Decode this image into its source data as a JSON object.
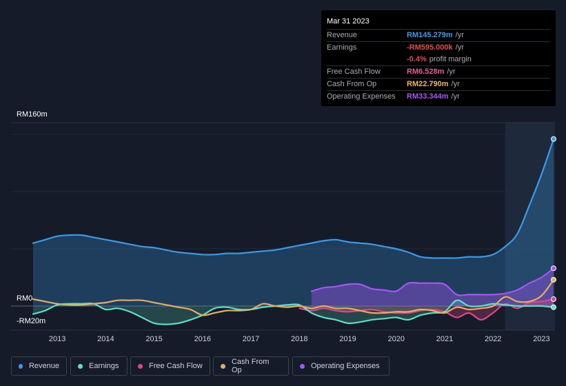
{
  "tooltip": {
    "date": "Mar 31 2023",
    "rows": [
      {
        "label": "Revenue",
        "value": "RM145.279m",
        "unit": "/yr",
        "color": "#3b9be8"
      },
      {
        "label": "Earnings",
        "value": "-RM595.000k",
        "unit": "/yr",
        "color": "#e5484d"
      },
      {
        "margin_value": "-0.4%",
        "margin_text": "profit margin",
        "color": "#e5484d"
      },
      {
        "label": "Free Cash Flow",
        "value": "RM6.528m",
        "unit": "/yr",
        "color": "#e45a9a"
      },
      {
        "label": "Cash From Op",
        "value": "RM22.790m",
        "unit": "/yr",
        "color": "#f0b46a"
      },
      {
        "label": "Operating Expenses",
        "value": "RM33.344m",
        "unit": "/yr",
        "color": "#a855f7"
      }
    ]
  },
  "legend": [
    {
      "label": "Revenue",
      "color": "#3b9be8"
    },
    {
      "label": "Earnings",
      "color": "#5ee0c5"
    },
    {
      "label": "Free Cash Flow",
      "color": "#d94a87"
    },
    {
      "label": "Cash From Op",
      "color": "#e8ad62"
    },
    {
      "label": "Operating Expenses",
      "color": "#a855f7"
    }
  ],
  "chart_data": {
    "type": "line",
    "title": "",
    "xlabel": "",
    "ylabel": "",
    "ylim": [
      -20,
      160
    ],
    "y_tick_labels": [
      "RM160m",
      "RM0",
      "-RM20m"
    ],
    "x_tick_labels": [
      "2013",
      "2014",
      "2015",
      "2016",
      "2017",
      "2018",
      "2019",
      "2020",
      "2021",
      "2022",
      "2023"
    ],
    "xlim": [
      2012.5,
      2023.25
    ],
    "highlight_start": 2022.25,
    "series": [
      {
        "name": "Revenue",
        "color": "#3b9be8",
        "fill": true,
        "x": [
          2012.5,
          2012.75,
          2013.0,
          2013.25,
          2013.5,
          2013.75,
          2014.0,
          2014.25,
          2014.5,
          2014.75,
          2015.0,
          2015.25,
          2015.5,
          2015.75,
          2016.0,
          2016.25,
          2016.5,
          2016.75,
          2017.0,
          2017.25,
          2017.5,
          2017.75,
          2018.0,
          2018.25,
          2018.5,
          2018.75,
          2019.0,
          2019.25,
          2019.5,
          2019.75,
          2020.0,
          2020.25,
          2020.5,
          2020.75,
          2021.0,
          2021.25,
          2021.5,
          2021.75,
          2022.0,
          2022.25,
          2022.5,
          2022.75,
          2023.0,
          2023.25
        ],
        "values": [
          55,
          58,
          61,
          62,
          62,
          60,
          58,
          56,
          54,
          52,
          51,
          49,
          47,
          46,
          45,
          45,
          46,
          46,
          47,
          48,
          49,
          51,
          53,
          55,
          57,
          58,
          56,
          55,
          54,
          52,
          50,
          47,
          43,
          42,
          42,
          42,
          43,
          43,
          45,
          52,
          63,
          88,
          115,
          146
        ]
      },
      {
        "name": "Earnings",
        "color": "#5ee0c5",
        "fill": true,
        "x": [
          2012.5,
          2012.75,
          2013.0,
          2013.25,
          2013.5,
          2013.75,
          2014.0,
          2014.25,
          2014.5,
          2014.75,
          2015.0,
          2015.25,
          2015.5,
          2015.75,
          2016.0,
          2016.25,
          2016.5,
          2016.75,
          2017.0,
          2017.25,
          2017.5,
          2017.75,
          2018.0,
          2018.25,
          2018.5,
          2018.75,
          2019.0,
          2019.25,
          2019.5,
          2019.75,
          2020.0,
          2020.25,
          2020.5,
          2020.75,
          2021.0,
          2021.25,
          2021.5,
          2021.75,
          2022.0,
          2022.25,
          2022.5,
          2022.75,
          2023.0,
          2023.25
        ],
        "values": [
          -7,
          -4,
          1,
          2,
          2,
          2,
          -3,
          -2,
          -5,
          -10,
          -15,
          -16,
          -15,
          -12,
          -8,
          -2,
          -1,
          -3,
          -3,
          -1,
          0,
          1,
          1,
          -6,
          -10,
          -12,
          -15,
          -14,
          -12,
          -11,
          -10,
          -12,
          -8,
          -6,
          -5,
          5,
          0,
          0,
          2,
          1,
          0,
          0,
          0,
          -1
        ]
      },
      {
        "name": "Free Cash Flow",
        "color": "#d94a87",
        "fill": true,
        "x": [
          2018.0,
          2018.25,
          2018.5,
          2018.75,
          2019.0,
          2019.25,
          2019.5,
          2019.75,
          2020.0,
          2020.25,
          2020.5,
          2020.75,
          2021.0,
          2021.25,
          2021.5,
          2021.75,
          2022.0,
          2022.25,
          2022.5,
          2022.75,
          2023.0,
          2023.25
        ],
        "values": [
          -2,
          -4,
          -2,
          -4,
          -5,
          -4,
          -3,
          -5,
          -6,
          -6,
          -4,
          -3,
          -5,
          -10,
          -6,
          -12,
          -6,
          2,
          -2,
          3,
          4,
          6
        ]
      },
      {
        "name": "Cash From Op",
        "color": "#e8ad62",
        "fill": false,
        "x": [
          2012.5,
          2012.75,
          2013.0,
          2013.25,
          2013.5,
          2013.75,
          2014.0,
          2014.25,
          2014.5,
          2014.75,
          2015.0,
          2015.25,
          2015.5,
          2015.75,
          2016.0,
          2016.25,
          2016.5,
          2016.75,
          2017.0,
          2017.25,
          2017.5,
          2017.75,
          2018.0,
          2018.25,
          2018.5,
          2018.75,
          2019.0,
          2019.25,
          2019.5,
          2019.75,
          2020.0,
          2020.25,
          2020.5,
          2020.75,
          2021.0,
          2021.25,
          2021.5,
          2021.75,
          2022.0,
          2022.25,
          2022.5,
          2022.75,
          2023.0,
          2023.25
        ],
        "values": [
          6,
          4,
          2,
          1,
          1,
          2,
          3,
          5,
          5,
          5,
          3,
          1,
          -1,
          -3,
          -8,
          -6,
          -4,
          -4,
          -3,
          2,
          0,
          -1,
          0,
          -2,
          0,
          -2,
          -2,
          -4,
          -6,
          -6,
          -5,
          -5,
          -3,
          -4,
          -6,
          -1,
          -3,
          -2,
          0,
          8,
          4,
          4,
          9,
          23
        ]
      },
      {
        "name": "Operating Expenses",
        "color": "#a855f7",
        "fill": true,
        "x": [
          2018.25,
          2018.5,
          2018.75,
          2019.0,
          2019.25,
          2019.5,
          2019.75,
          2020.0,
          2020.25,
          2020.5,
          2020.75,
          2021.0,
          2021.25,
          2021.5,
          2021.75,
          2022.0,
          2022.25,
          2022.5,
          2022.75,
          2023.0,
          2023.25
        ],
        "values": [
          13,
          16,
          17,
          19,
          19,
          15,
          14,
          13,
          20,
          20,
          20,
          19,
          10,
          10,
          10,
          10,
          11,
          14,
          20,
          25,
          33
        ]
      }
    ]
  }
}
